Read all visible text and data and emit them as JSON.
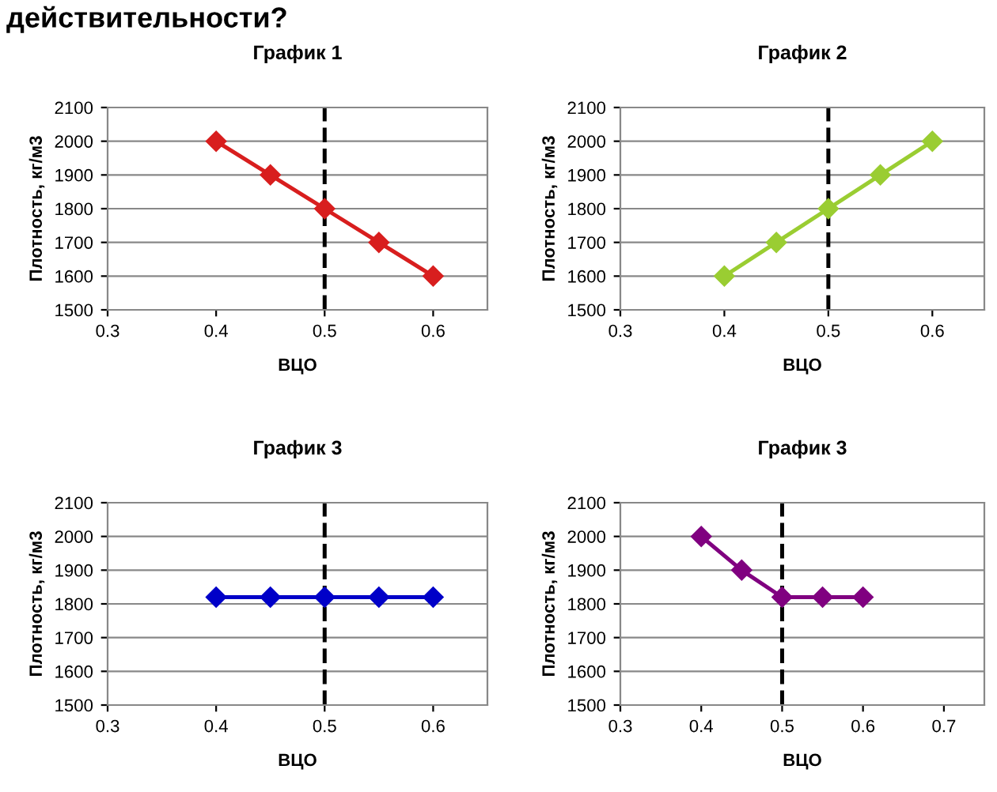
{
  "chart_data": [
    {
      "type": "line",
      "title": "График 1",
      "xlabel": "ВЦО",
      "ylabel": "Плотность, кг/м3",
      "annotations": [
        "действительности?"
      ],
      "x": [
        0.4,
        0.45,
        0.5,
        0.55,
        0.6
      ],
      "series": [
        {
          "color": "#d81e1e",
          "values": [
            2000,
            1900,
            1800,
            1700,
            1600
          ]
        }
      ],
      "xlim": [
        0.3,
        0.65
      ],
      "xticks": [
        0.3,
        0.4,
        0.5,
        0.6
      ],
      "ylim": [
        1500,
        2100
      ],
      "yticks": [
        1500,
        1600,
        1700,
        1800,
        1900,
        2000,
        2100
      ],
      "grid": "y",
      "marker": "diamond",
      "legend": false,
      "ref_lines": [
        {
          "axis": "x",
          "value": 0.5,
          "color": "#000000",
          "line_style": "dashed"
        }
      ]
    },
    {
      "type": "line",
      "title": "График 2",
      "xlabel": "ВЦО",
      "ylabel": "Плотность, кг/м3",
      "x": [
        0.4,
        0.45,
        0.5,
        0.55,
        0.6
      ],
      "series": [
        {
          "color": "#9acd32",
          "values": [
            1600,
            1700,
            1800,
            1900,
            2000
          ]
        }
      ],
      "xlim": [
        0.3,
        0.65
      ],
      "xticks": [
        0.3,
        0.4,
        0.5,
        0.6
      ],
      "ylim": [
        1500,
        2100
      ],
      "yticks": [
        1500,
        1600,
        1700,
        1800,
        1900,
        2000,
        2100
      ],
      "grid": "y",
      "marker": "diamond",
      "legend": false,
      "ref_lines": [
        {
          "axis": "x",
          "value": 0.5,
          "color": "#000000",
          "line_style": "dashed"
        }
      ]
    },
    {
      "type": "line",
      "title": "График 3",
      "xlabel": "ВЦО",
      "ylabel": "Плотность, кг/м3",
      "x": [
        0.4,
        0.45,
        0.5,
        0.55,
        0.6
      ],
      "series": [
        {
          "color": "#0000c8",
          "values": [
            1820,
            1820,
            1820,
            1820,
            1820
          ]
        }
      ],
      "xlim": [
        0.3,
        0.65
      ],
      "xticks": [
        0.3,
        0.4,
        0.5,
        0.6
      ],
      "ylim": [
        1500,
        2100
      ],
      "yticks": [
        1500,
        1600,
        1700,
        1800,
        1900,
        2000,
        2100
      ],
      "grid": "y",
      "marker": "diamond",
      "legend": false,
      "ref_lines": [
        {
          "axis": "x",
          "value": 0.5,
          "color": "#000000",
          "line_style": "dashed"
        }
      ]
    },
    {
      "type": "line",
      "title": "График 3",
      "xlabel": "ВЦО",
      "ylabel": "Плотность, кг/м3",
      "x": [
        0.4,
        0.45,
        0.5,
        0.55,
        0.6
      ],
      "series": [
        {
          "color": "#800080",
          "values": [
            2000,
            1900,
            1820,
            1820,
            1820
          ]
        }
      ],
      "xlim": [
        0.3,
        0.75
      ],
      "xticks": [
        0.3,
        0.4,
        0.5,
        0.6,
        0.7
      ],
      "ylim": [
        1500,
        2100
      ],
      "yticks": [
        1500,
        1600,
        1700,
        1800,
        1900,
        2000,
        2100
      ],
      "grid": "y",
      "marker": "diamond",
      "legend": false,
      "ref_lines": [
        {
          "axis": "x",
          "value": 0.5,
          "color": "#000000",
          "line_style": "dashed"
        }
      ]
    }
  ]
}
